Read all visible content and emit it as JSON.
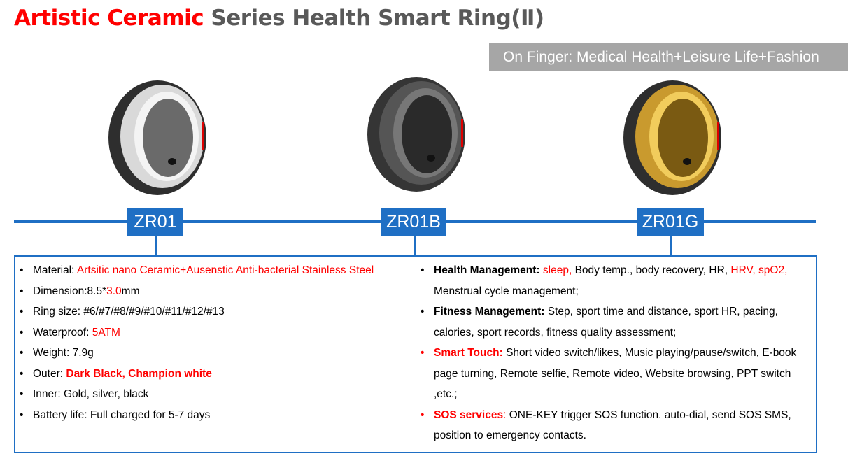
{
  "title": {
    "red": "Artistic Ceramic",
    "gray": " Series Health Smart Ring(Ⅱ)"
  },
  "banner": "On Finger: Medical Health+Leisure Life+Fashion",
  "colors": {
    "accent": "#1f6fc4",
    "highlight": "#ff0000",
    "banner": "#a6a6a6"
  },
  "models": [
    {
      "label": "ZR01",
      "inner": "silver"
    },
    {
      "label": "ZR01B",
      "inner": "black"
    },
    {
      "label": "ZR01G",
      "inner": "gold"
    }
  ],
  "left": {
    "items": [
      {
        "segments": [
          {
            "text": "Material: "
          },
          {
            "text": "Artsitic nano Ceramic+Ausenstic Anti-bacterial Stainless Steel",
            "red": true
          }
        ]
      },
      {
        "segments": [
          {
            "text": "Dimension:8.5*"
          },
          {
            "text": "3.0",
            "red": true
          },
          {
            "text": "mm"
          }
        ]
      },
      {
        "segments": [
          {
            "text": "Ring size: #6/#7/#8/#9/#10/#11/#12/#13"
          }
        ]
      },
      {
        "segments": [
          {
            "text": "Waterproof: "
          },
          {
            "text": "5ATM",
            "red": true
          }
        ]
      },
      {
        "segments": [
          {
            "text": "Weight: 7.9g"
          }
        ]
      },
      {
        "segments": [
          {
            "text": "Outer:  "
          },
          {
            "text": "Dark Black, Champion white",
            "red": true,
            "bold": true
          }
        ]
      },
      {
        "segments": [
          {
            "text": "Inner: Gold, silver, black"
          }
        ]
      },
      {
        "segments": [
          {
            "text": "Battery life: Full charged for 5-7 days"
          }
        ]
      }
    ]
  },
  "right": {
    "items": [
      {
        "segments": [
          {
            "text": "Health Management: ",
            "bold": true
          },
          {
            "text": "sleep,",
            "red": true
          },
          {
            "text": " Body temp., body recovery, HR, "
          },
          {
            "text": "HRV, spO2,",
            "red": true
          },
          {
            "text": " Menstrual cycle management;"
          }
        ]
      },
      {
        "segments": [
          {
            "text": "Fitness Management: ",
            "bold": true
          },
          {
            "text": "Step, sport time and distance, sport HR, pacing, calories, sport records, fitness quality assessment;"
          }
        ]
      },
      {
        "red_bullet": true,
        "segments": [
          {
            "text": "Smart Touch: ",
            "bold": true,
            "red": true
          },
          {
            "text": "Short video switch/likes, Music playing/pause/switch, E-book page turning, Remote selfie, Remote video, Website browsing, PPT switch ,etc.;"
          }
        ]
      },
      {
        "red_bullet": true,
        "segments": [
          {
            "text": "SOS services",
            "bold": true,
            "red": true
          },
          {
            "text": ":",
            "red": true
          },
          {
            "text": " ONE-KEY trigger SOS function. auto-dial,  send SOS SMS,  position to emergency contacts."
          }
        ]
      }
    ]
  }
}
